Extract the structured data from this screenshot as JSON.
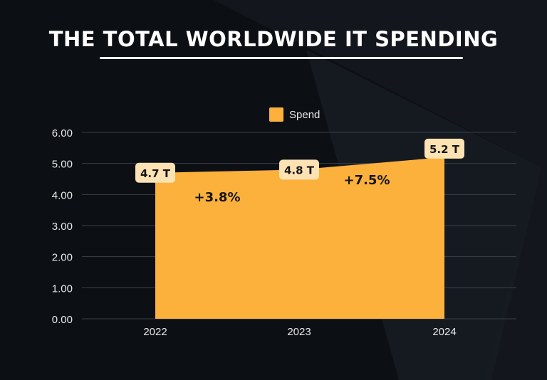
{
  "title": "THE TOTAL WORLDWIDE IT SPENDING",
  "colors": {
    "background": "#0c0f14",
    "area": "#fbb13c",
    "label_bg": "#fde3b3",
    "grid": "#3a3f47",
    "text": "#e8e8e8"
  },
  "chart_data": {
    "type": "area",
    "x": [
      "2022",
      "2023",
      "2024"
    ],
    "series": [
      {
        "name": "Spend",
        "values": [
          4.7,
          4.8,
          5.2
        ]
      }
    ],
    "data_labels": [
      "4.7 T",
      "4.8 T",
      "5.2 T"
    ],
    "annotations": [
      "+3.8%",
      "+7.5%"
    ],
    "yticks": [
      "0.00",
      "1.00",
      "2.00",
      "3.00",
      "4.00",
      "5.00",
      "6.00"
    ],
    "ylim": [
      0,
      6
    ],
    "grid": true,
    "legend_position": "top-center"
  }
}
